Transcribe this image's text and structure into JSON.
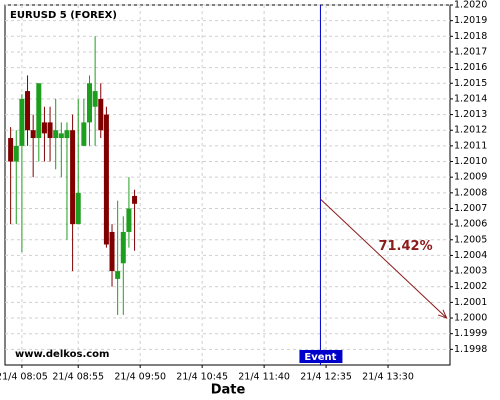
{
  "chart_data": {
    "type": "candlestick",
    "title": "EURUSD 5 (FOREX)",
    "x_label": "Date",
    "watermark": "www.delkos.com",
    "x": [
      "21/4 07:55",
      "21/4 08:00",
      "21/4 08:05",
      "21/4 08:10",
      "21/4 08:15",
      "21/4 08:20",
      "21/4 08:25",
      "21/4 08:30",
      "21/4 08:35",
      "21/4 08:40",
      "21/4 08:45",
      "21/4 08:50",
      "21/4 08:55",
      "21/4 09:00",
      "21/4 09:05",
      "21/4 09:10",
      "21/4 09:15",
      "21/4 09:20",
      "21/4 09:25",
      "21/4 09:30",
      "21/4 09:35",
      "21/4 09:40",
      "21/4 09:45"
    ],
    "open": [
      1.20115,
      1.201,
      1.2011,
      1.20145,
      1.2012,
      1.20115,
      1.20125,
      1.20125,
      1.20115,
      1.20115,
      1.20115,
      1.2012,
      1.2006,
      1.2011,
      1.20125,
      1.20135,
      1.2014,
      1.2013,
      1.20055,
      1.20025,
      1.20035,
      1.20055,
      1.20078
    ],
    "high": [
      1.20122,
      1.2012,
      1.20143,
      1.20155,
      1.2013,
      1.2015,
      1.20135,
      1.20135,
      1.2014,
      1.20125,
      1.20125,
      1.2013,
      1.2014,
      1.2014,
      1.20155,
      1.2018,
      1.2015,
      1.20135,
      1.2006,
      1.20075,
      1.20065,
      1.2009,
      1.20082
    ],
    "low": [
      1.2006,
      1.2006,
      1.20042,
      1.2011,
      1.2009,
      1.201,
      1.201,
      1.201,
      1.20095,
      1.2009,
      1.2005,
      1.2003,
      1.2006,
      1.2011,
      1.2011,
      1.2011,
      1.20115,
      1.20045,
      1.2002,
      1.20002,
      1.20002,
      1.20045,
      1.20043
    ],
    "close": [
      1.201,
      1.2011,
      1.2014,
      1.2012,
      1.20115,
      1.2015,
      1.20118,
      1.20115,
      1.2012,
      1.20118,
      1.2012,
      1.2006,
      1.2008,
      1.20125,
      1.2015,
      1.20145,
      1.2012,
      1.20047,
      1.2003,
      1.2003,
      1.20055,
      1.2007,
      1.20073
    ],
    "up_color": "#1e9e1e",
    "down_color": "#800000",
    "xlim": [
      "21/4 07:50",
      "21/4 14:25"
    ],
    "xticks": [
      "21/4 08:05",
      "21/4 08:55",
      "21/4 09:50",
      "21/4 10:45",
      "21/4 11:40",
      "21/4 12:35",
      "21/4 13:30"
    ],
    "ylim": [
      1.1997,
      1.202
    ],
    "yticks": [
      {
        "value": 1.202,
        "label": "1.2020"
      },
      1.2019,
      1.2018,
      1.2017,
      1.2016,
      1.2015,
      1.2014,
      1.2013,
      1.2012,
      1.2011,
      {
        "value": 1.201,
        "label": "1.2010"
      },
      1.2009,
      1.2008,
      1.2007,
      1.2006,
      1.2005,
      1.2004,
      1.2003,
      1.2002,
      1.2001,
      {
        "value": 1.2,
        "label": "1.2000"
      },
      1.1999,
      1.1998
    ],
    "grid": true,
    "event": {
      "x": "21/4 12:30",
      "label": "Event",
      "color": "#0000cc"
    },
    "projection": {
      "start": {
        "x": "21/4 12:30",
        "y": 1.20076
      },
      "end": {
        "x": "21/4 14:22",
        "y": 1.2
      },
      "label": "71.42%",
      "color": "#8b1a1a"
    }
  }
}
